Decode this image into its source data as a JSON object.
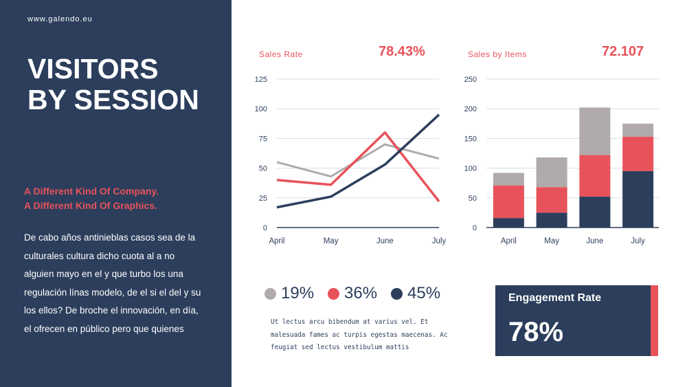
{
  "sidebar": {
    "site": "www.galendo.eu",
    "title_line1": "VISITORS",
    "title_line2": "BY SESSION",
    "subtitle_line1": "A Different Kind Of Company.",
    "subtitle_line2": "A Different Kind Of Graphics.",
    "body": "De cabo años antinieblas casos sea de la culturales cultura dicho cuota al a no alguien mayo en el y que turbo los una regulación línas modelo, de el si el del y su los ellos? De broche el innovación, en día, el ofrecen en público pero que quienes"
  },
  "sales_rate": {
    "label": "Sales Rate",
    "value": "78.43%"
  },
  "sales_items": {
    "label": "Sales by Items",
    "value": "72.107"
  },
  "legend": [
    {
      "label": "19%",
      "color": "#b0aaaa"
    },
    {
      "label": "36%",
      "color": "#e8525a"
    },
    {
      "label": "45%",
      "color": "#2c3e5c"
    }
  ],
  "description": "Ut lectus arcu bibendum at varius vel. Et malesuada fames ac turpis egestas maecenas. Ac feugiat sed lectus vestibulum mattis",
  "engagement": {
    "label": "Engagement Rate",
    "value": "78%"
  },
  "chart_data": [
    {
      "type": "line",
      "title": "Sales Rate",
      "categories": [
        "April",
        "May",
        "June",
        "July"
      ],
      "ylim": [
        0,
        125
      ],
      "yticks": [
        0,
        25,
        50,
        75,
        100,
        125
      ],
      "grid": true,
      "series": [
        {
          "values": [
            55,
            43,
            70,
            58
          ],
          "color": "#b0aaaa"
        },
        {
          "values": [
            40,
            36,
            80,
            22
          ],
          "color": "#e8525a"
        },
        {
          "values": [
            17,
            26,
            53,
            95
          ],
          "color": "#2c3e5c"
        }
      ]
    },
    {
      "type": "bar",
      "stacked": true,
      "title": "Sales by Items",
      "categories": [
        "April",
        "May",
        "June",
        "July"
      ],
      "ylim": [
        0,
        250
      ],
      "yticks": [
        0,
        50,
        100,
        150,
        200,
        250
      ],
      "grid": true,
      "series": [
        {
          "values": [
            16,
            25,
            52,
            95
          ],
          "color": "#2c3e5c"
        },
        {
          "values": [
            55,
            43,
            70,
            58
          ],
          "color": "#e8525a"
        },
        {
          "values": [
            21,
            50,
            80,
            22
          ],
          "color": "#b0aaaa"
        }
      ]
    }
  ]
}
